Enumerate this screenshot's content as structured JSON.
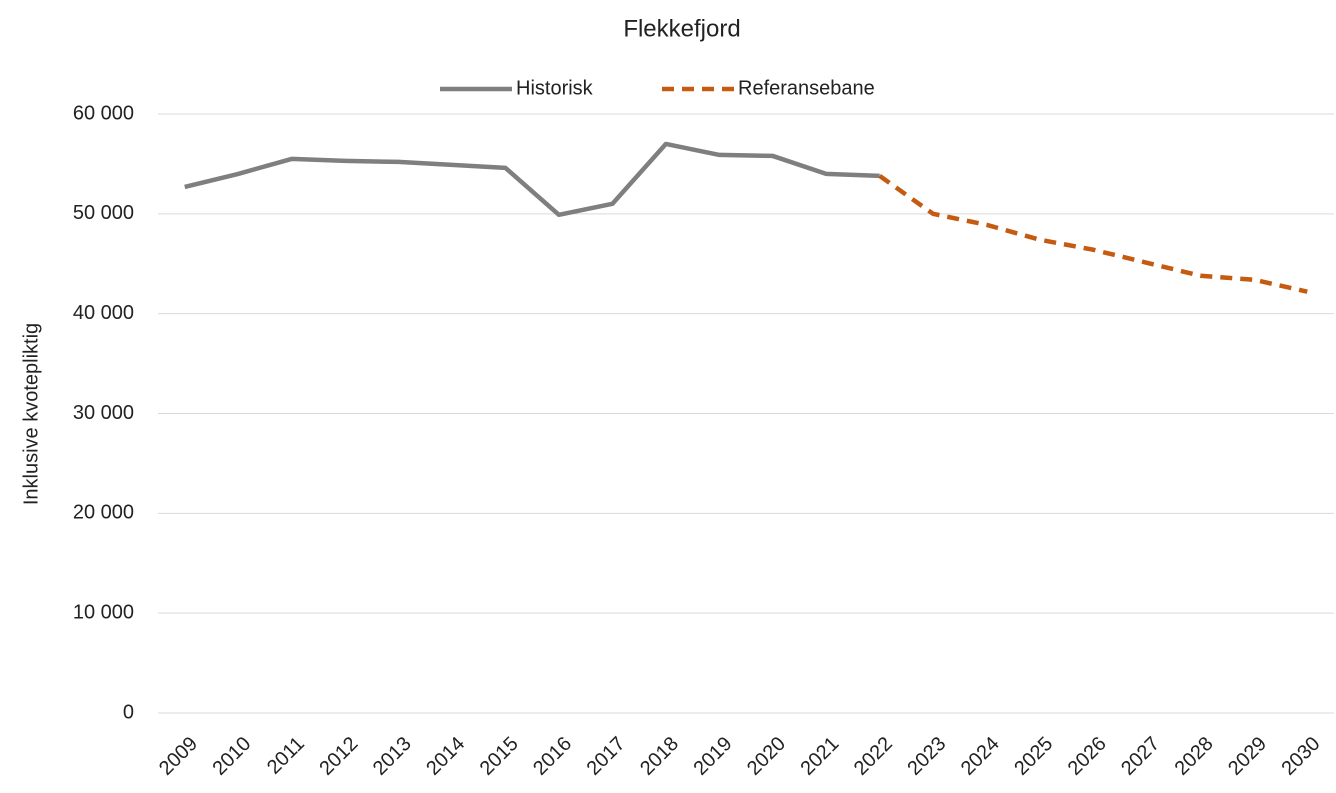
{
  "chart_data": {
    "type": "line",
    "title": "Flekkefjord",
    "y_label": "Inklusive kvotepliktig",
    "categories": [
      "2009",
      "2010",
      "2011",
      "2012",
      "2013",
      "2014",
      "2015",
      "2016",
      "2017",
      "2018",
      "2019",
      "2020",
      "2021",
      "2022",
      "2023",
      "2024",
      "2025",
      "2026",
      "2027",
      "2028",
      "2029",
      "2030"
    ],
    "series": [
      {
        "name": "Historisk",
        "color": "#7f7f7f",
        "dash": false,
        "values": [
          52700,
          54000,
          55500,
          55300,
          55200,
          54900,
          54600,
          49900,
          51000,
          57000,
          55900,
          55800,
          54000,
          53800,
          null,
          null,
          null,
          null,
          null,
          null,
          null,
          null
        ]
      },
      {
        "name": "Referansebane",
        "color": "#c55a11",
        "dash": true,
        "values": [
          null,
          null,
          null,
          null,
          null,
          null,
          null,
          null,
          null,
          null,
          null,
          null,
          null,
          53800,
          50000,
          48900,
          47400,
          46400,
          45100,
          43800,
          43400,
          42200
        ]
      }
    ],
    "ylim": [
      0,
      60000
    ],
    "yticks": [
      0,
      {
        "value": 10000,
        "label": "10 000"
      },
      {
        "value": 20000,
        "label": "20 000"
      },
      {
        "value": 30000,
        "label": "30 000"
      },
      {
        "value": 40000,
        "label": "40 000"
      },
      {
        "value": 50000,
        "label": "50 000"
      },
      {
        "value": 60000,
        "label": "60 000"
      }
    ],
    "grid": true,
    "legend": "top"
  }
}
